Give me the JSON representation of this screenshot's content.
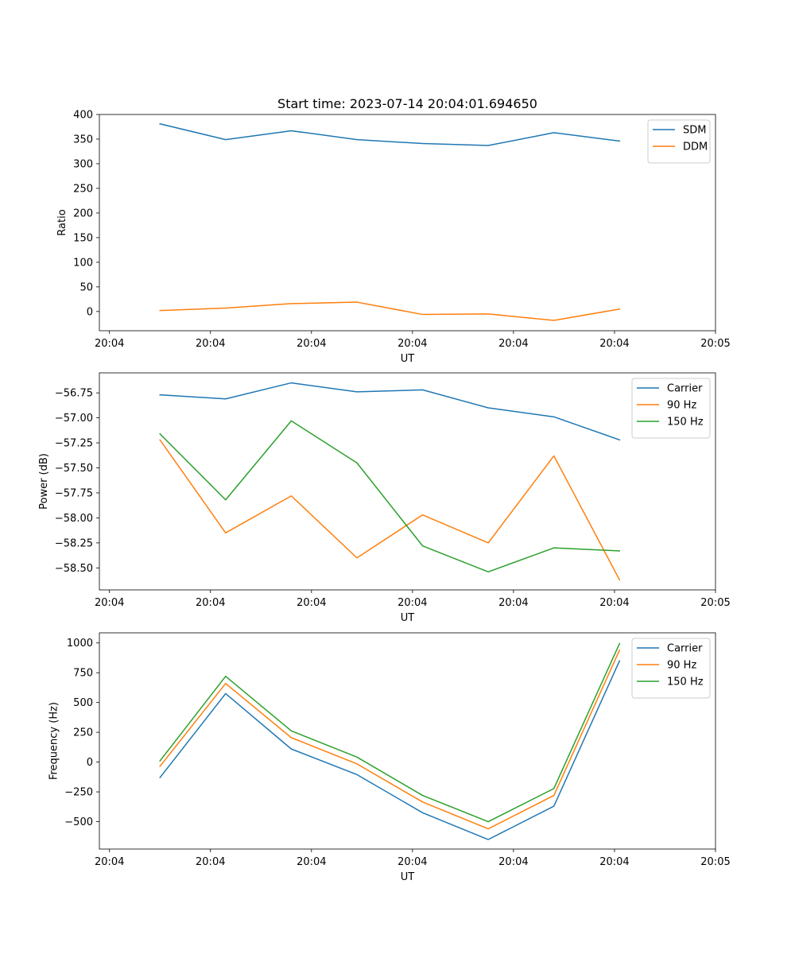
{
  "chart_data": [
    {
      "type": "line",
      "title": "Start time: 2023-07-14 20:04:01.694650",
      "xlabel": "UT",
      "ylabel": "Ratio",
      "x": [
        0.5,
        1.15,
        1.8,
        2.45,
        3.1,
        3.75,
        4.4,
        5.05
      ],
      "xlim": [
        -0.1,
        6.0
      ],
      "xticks": [
        0,
        1,
        2,
        3,
        4,
        5,
        6
      ],
      "xtick_labels": [
        "20:04",
        "20:04",
        "20:04",
        "20:04",
        "20:04",
        "20:04",
        "20:05"
      ],
      "ylim": [
        -39,
        400
      ],
      "yticks": [
        0,
        50,
        100,
        150,
        200,
        250,
        300,
        350,
        400
      ],
      "ytick_labels": [
        "0",
        "50",
        "100",
        "150",
        "200",
        "250",
        "300",
        "350",
        "400"
      ],
      "legend": "top-right",
      "series": [
        {
          "name": "SDM",
          "color": "#1f77b4",
          "values": [
            381,
            349,
            367,
            349,
            341,
            337,
            363,
            346
          ]
        },
        {
          "name": "DDM",
          "color": "#ff7f0e",
          "values": [
            2,
            7,
            16,
            19,
            -6,
            -5,
            -18,
            5
          ]
        }
      ]
    },
    {
      "type": "line",
      "title": "",
      "xlabel": "UT",
      "ylabel": "Power (dB)",
      "x": [
        0.5,
        1.15,
        1.8,
        2.45,
        3.1,
        3.75,
        4.4,
        5.05
      ],
      "xlim": [
        -0.1,
        6.0
      ],
      "xticks": [
        0,
        1,
        2,
        3,
        4,
        5,
        6
      ],
      "xtick_labels": [
        "20:04",
        "20:04",
        "20:04",
        "20:04",
        "20:04",
        "20:04",
        "20:05"
      ],
      "ylim": [
        -58.72,
        -56.55
      ],
      "yticks": [
        -56.75,
        -57.0,
        -57.25,
        -57.5,
        -57.75,
        -58.0,
        -58.25,
        -58.5
      ],
      "ytick_labels": [
        "−56.75",
        "−57.00",
        "−57.25",
        "−57.50",
        "−57.75",
        "−58.00",
        "−58.25",
        "−58.50"
      ],
      "legend": "top-right",
      "series": [
        {
          "name": "Carrier",
          "color": "#1f77b4",
          "values": [
            -56.77,
            -56.81,
            -56.65,
            -56.74,
            -56.72,
            -56.9,
            -56.99,
            -57.22
          ]
        },
        {
          "name": "90 Hz",
          "color": "#ff7f0e",
          "values": [
            -57.22,
            -58.15,
            -57.78,
            -58.4,
            -57.97,
            -58.25,
            -57.38,
            -58.62
          ]
        },
        {
          "name": "150 Hz",
          "color": "#2ca02c",
          "values": [
            -57.16,
            -57.82,
            -57.03,
            -57.45,
            -58.28,
            -58.54,
            -58.3,
            -58.33
          ]
        }
      ]
    },
    {
      "type": "line",
      "title": "",
      "xlabel": "UT",
      "ylabel": "Frequency (Hz)",
      "x": [
        0.5,
        1.15,
        1.8,
        2.45,
        3.1,
        3.75,
        4.4,
        5.05
      ],
      "xlim": [
        -0.1,
        6.0
      ],
      "xticks": [
        0,
        1,
        2,
        3,
        4,
        5,
        6
      ],
      "xtick_labels": [
        "20:04",
        "20:04",
        "20:04",
        "20:04",
        "20:04",
        "20:04",
        "20:05"
      ],
      "ylim": [
        -730,
        1085
      ],
      "yticks": [
        -500,
        -250,
        0,
        250,
        500,
        750,
        1000
      ],
      "ytick_labels": [
        "−500",
        "−250",
        "0",
        "250",
        "500",
        "750",
        "1000"
      ],
      "legend": "top-right",
      "series": [
        {
          "name": "Carrier",
          "color": "#1f77b4",
          "values": [
            -130,
            575,
            110,
            -105,
            -425,
            -650,
            -370,
            850
          ]
        },
        {
          "name": "90 Hz",
          "color": "#ff7f0e",
          "values": [
            -35,
            660,
            205,
            -15,
            -335,
            -560,
            -280,
            940
          ]
        },
        {
          "name": "150 Hz",
          "color": "#2ca02c",
          "values": [
            10,
            720,
            262,
            42,
            -280,
            -500,
            -222,
            995
          ]
        }
      ]
    }
  ]
}
